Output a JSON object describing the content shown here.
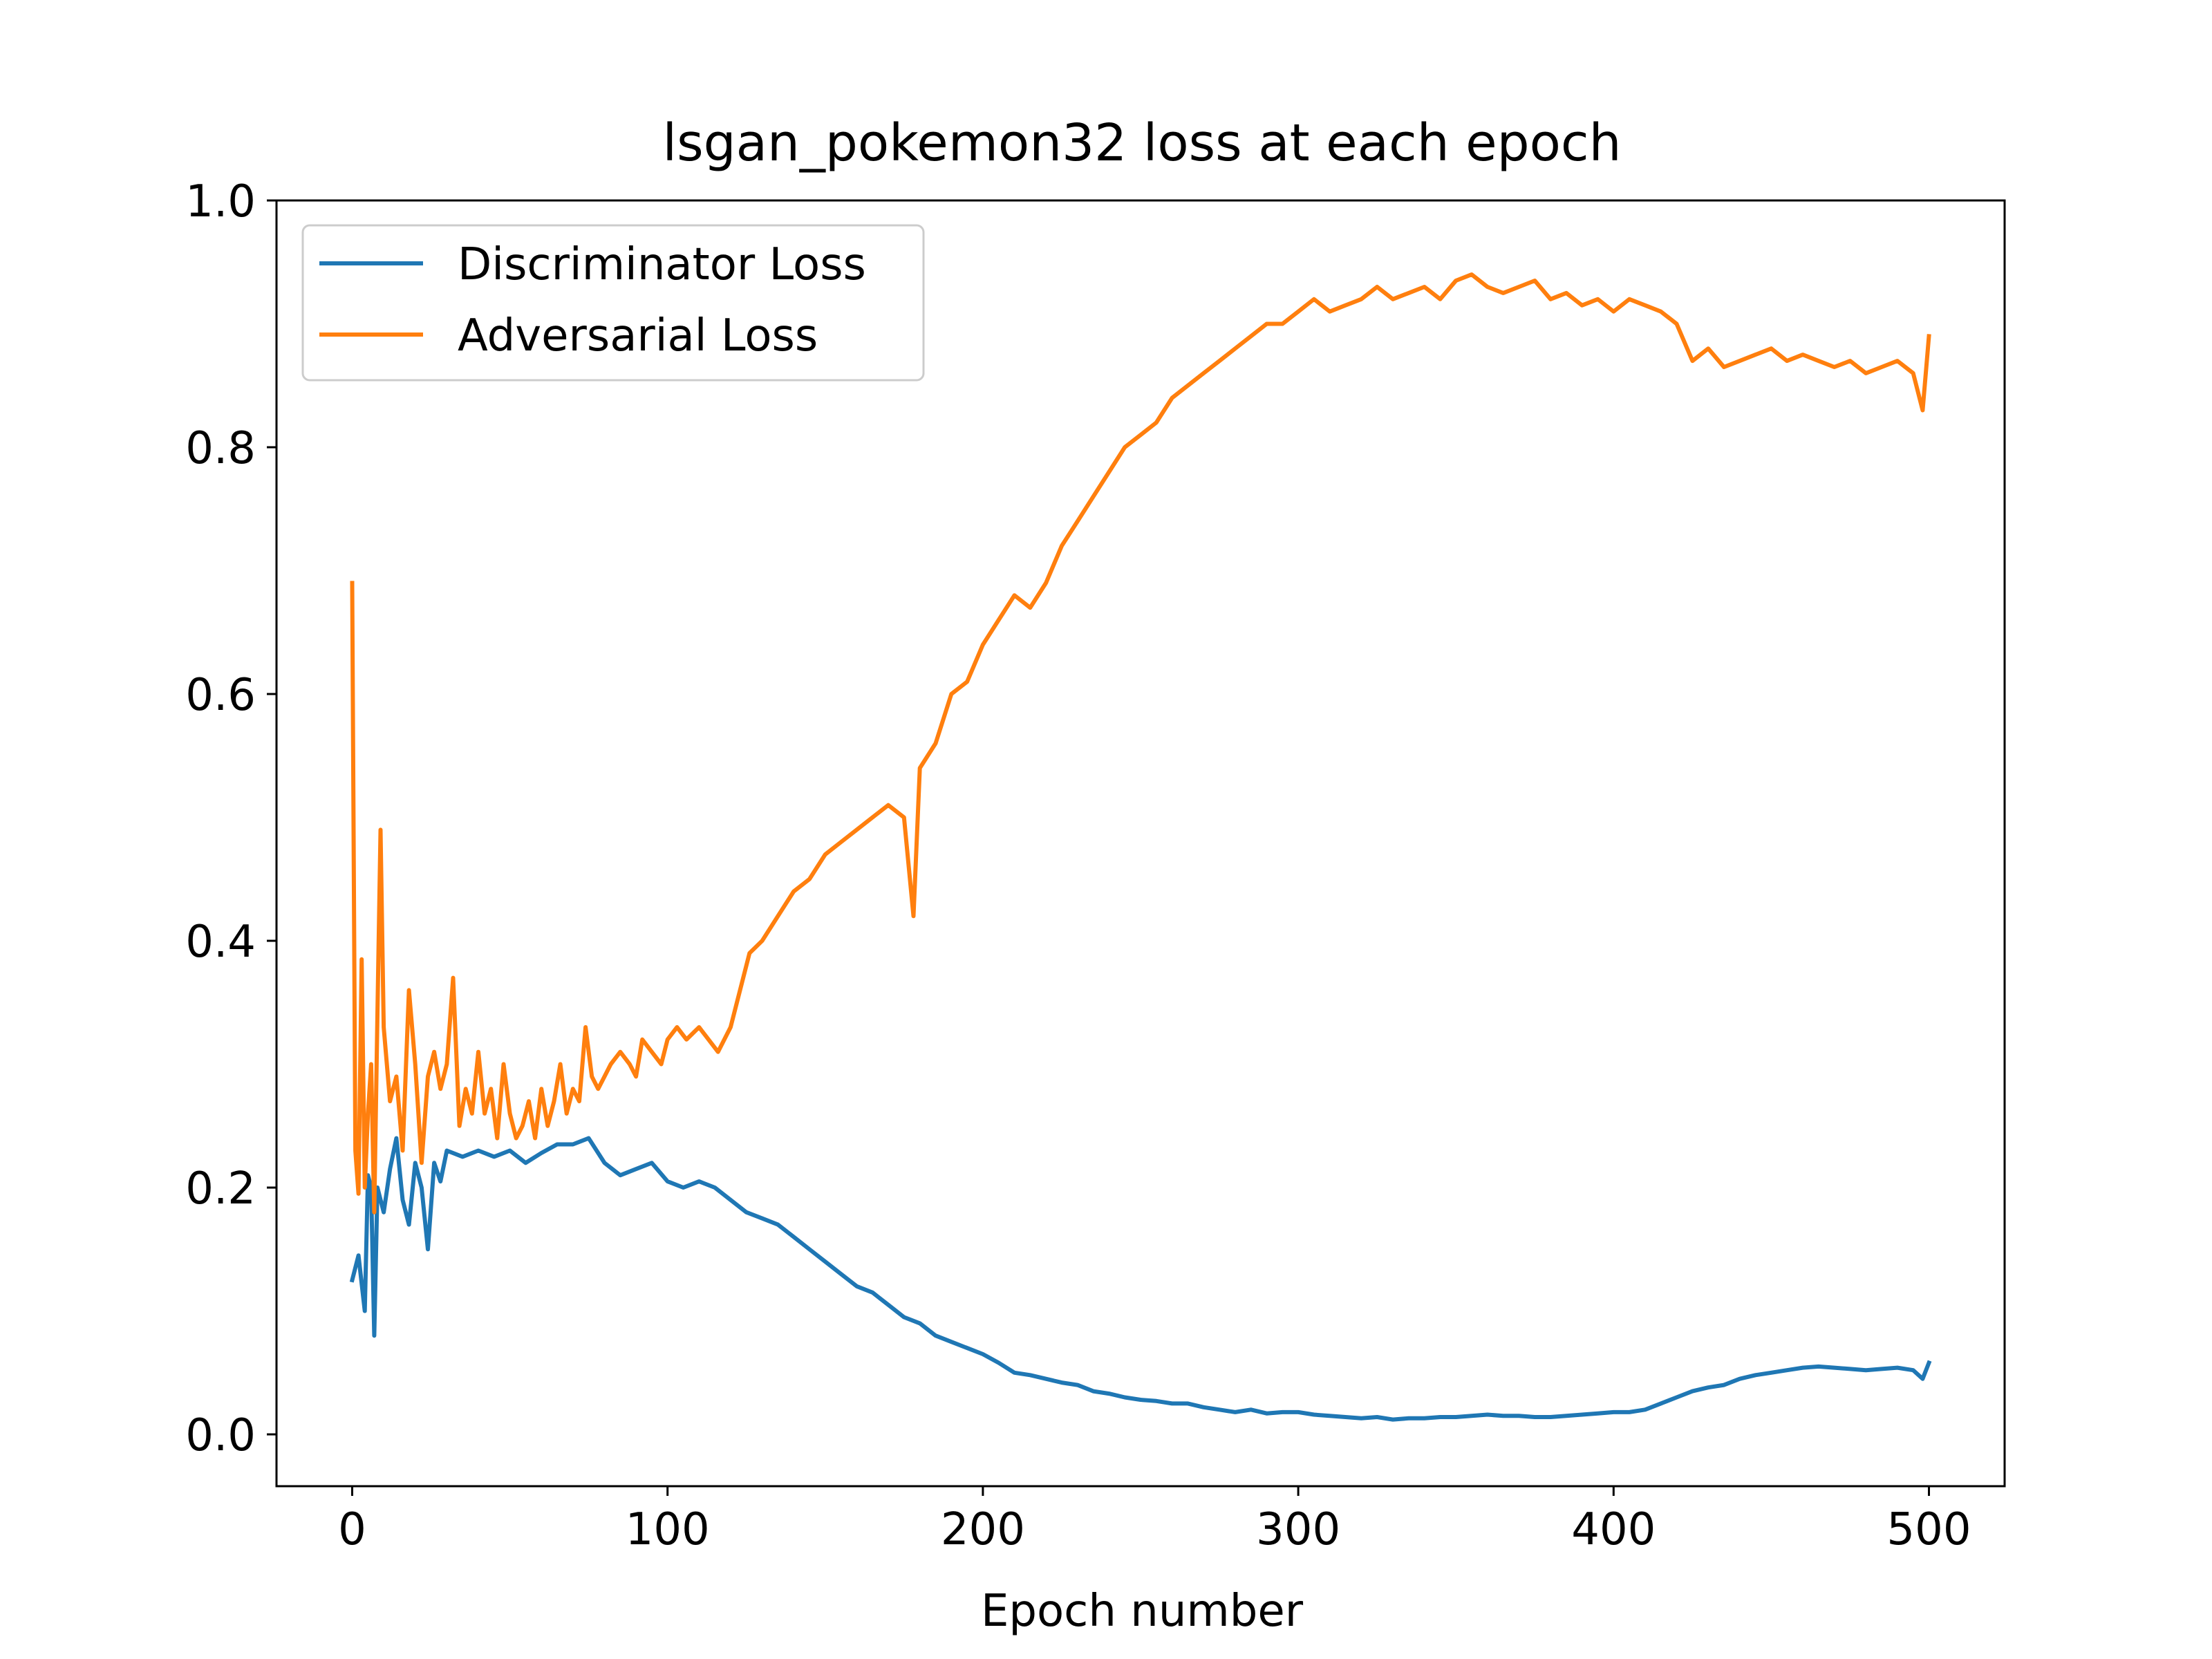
{
  "chart_data": {
    "type": "line",
    "title": "lsgan_pokemon32 loss at each epoch",
    "xlabel": "Epoch number",
    "ylabel": "",
    "xlim": [
      -24,
      524
    ],
    "ylim": [
      -0.042,
      1.0
    ],
    "xticks": [
      0,
      100,
      200,
      300,
      400,
      500
    ],
    "xtick_labels": [
      "0",
      "100",
      "200",
      "300",
      "400",
      "500"
    ],
    "yticks": [
      0.0,
      0.2,
      0.4,
      0.6,
      0.8,
      1.0
    ],
    "ytick_labels": [
      "0.0",
      "0.2",
      "0.4",
      "0.6",
      "0.8",
      "1.0"
    ],
    "grid": false,
    "legend_position": "top-left",
    "series": [
      {
        "name": "Discriminator Loss",
        "color": "#1f77b4",
        "x": [
          0,
          2,
          4,
          5,
          6,
          7,
          8,
          10,
          12,
          14,
          16,
          18,
          20,
          22,
          24,
          26,
          28,
          30,
          35,
          40,
          45,
          50,
          55,
          60,
          65,
          70,
          75,
          80,
          85,
          90,
          95,
          100,
          105,
          110,
          115,
          120,
          125,
          130,
          135,
          140,
          145,
          150,
          155,
          160,
          165,
          170,
          175,
          180,
          185,
          190,
          195,
          200,
          205,
          210,
          215,
          220,
          225,
          230,
          235,
          240,
          245,
          250,
          255,
          260,
          265,
          270,
          275,
          280,
          285,
          290,
          295,
          300,
          305,
          310,
          315,
          320,
          325,
          330,
          335,
          340,
          345,
          350,
          355,
          360,
          365,
          370,
          375,
          380,
          385,
          390,
          395,
          400,
          405,
          410,
          415,
          420,
          425,
          430,
          435,
          440,
          445,
          450,
          455,
          460,
          465,
          470,
          475,
          480,
          485,
          490,
          495,
          498,
          500
        ],
        "values": [
          0.125,
          0.145,
          0.1,
          0.21,
          0.2,
          0.08,
          0.2,
          0.18,
          0.215,
          0.24,
          0.19,
          0.17,
          0.22,
          0.2,
          0.15,
          0.22,
          0.205,
          0.23,
          0.225,
          0.23,
          0.225,
          0.23,
          0.22,
          0.228,
          0.235,
          0.235,
          0.24,
          0.22,
          0.21,
          0.215,
          0.22,
          0.205,
          0.2,
          0.205,
          0.2,
          0.19,
          0.18,
          0.175,
          0.17,
          0.16,
          0.15,
          0.14,
          0.13,
          0.12,
          0.115,
          0.105,
          0.095,
          0.09,
          0.08,
          0.075,
          0.07,
          0.065,
          0.058,
          0.05,
          0.048,
          0.045,
          0.042,
          0.04,
          0.035,
          0.033,
          0.03,
          0.028,
          0.027,
          0.025,
          0.025,
          0.022,
          0.02,
          0.018,
          0.02,
          0.017,
          0.018,
          0.018,
          0.016,
          0.015,
          0.014,
          0.013,
          0.014,
          0.012,
          0.013,
          0.013,
          0.014,
          0.014,
          0.015,
          0.016,
          0.015,
          0.015,
          0.014,
          0.014,
          0.015,
          0.016,
          0.017,
          0.018,
          0.018,
          0.02,
          0.025,
          0.03,
          0.035,
          0.038,
          0.04,
          0.045,
          0.048,
          0.05,
          0.052,
          0.054,
          0.055,
          0.054,
          0.053,
          0.052,
          0.053,
          0.054,
          0.052,
          0.045,
          0.058
        ]
      },
      {
        "name": "Adversarial Loss",
        "color": "#ff7f0e",
        "x": [
          0,
          1,
          2,
          3,
          4,
          5,
          6,
          7,
          8,
          9,
          10,
          12,
          14,
          16,
          18,
          20,
          22,
          24,
          26,
          28,
          30,
          32,
          34,
          36,
          38,
          40,
          42,
          44,
          46,
          48,
          50,
          52,
          54,
          56,
          58,
          60,
          62,
          64,
          66,
          68,
          70,
          72,
          74,
          76,
          78,
          80,
          82,
          85,
          88,
          90,
          92,
          95,
          98,
          100,
          103,
          106,
          110,
          113,
          116,
          120,
          123,
          126,
          130,
          135,
          140,
          145,
          150,
          155,
          160,
          165,
          170,
          175,
          178,
          180,
          185,
          190,
          195,
          200,
          205,
          210,
          215,
          220,
          225,
          230,
          235,
          240,
          245,
          250,
          255,
          260,
          265,
          270,
          275,
          280,
          285,
          290,
          295,
          300,
          305,
          310,
          315,
          320,
          325,
          330,
          335,
          340,
          345,
          350,
          355,
          360,
          365,
          370,
          375,
          380,
          385,
          390,
          395,
          400,
          405,
          410,
          415,
          420,
          425,
          430,
          435,
          440,
          445,
          450,
          455,
          460,
          465,
          470,
          475,
          480,
          485,
          490,
          495,
          498,
          500
        ],
        "values": [
          0.69,
          0.23,
          0.195,
          0.385,
          0.2,
          0.26,
          0.3,
          0.18,
          0.34,
          0.49,
          0.33,
          0.27,
          0.29,
          0.23,
          0.36,
          0.3,
          0.22,
          0.29,
          0.31,
          0.28,
          0.3,
          0.37,
          0.25,
          0.28,
          0.26,
          0.31,
          0.26,
          0.28,
          0.24,
          0.3,
          0.26,
          0.24,
          0.25,
          0.27,
          0.24,
          0.28,
          0.25,
          0.27,
          0.3,
          0.26,
          0.28,
          0.27,
          0.33,
          0.29,
          0.28,
          0.29,
          0.3,
          0.31,
          0.3,
          0.29,
          0.32,
          0.31,
          0.3,
          0.32,
          0.33,
          0.32,
          0.33,
          0.32,
          0.31,
          0.33,
          0.36,
          0.39,
          0.4,
          0.42,
          0.44,
          0.45,
          0.47,
          0.48,
          0.49,
          0.5,
          0.51,
          0.5,
          0.42,
          0.54,
          0.56,
          0.6,
          0.61,
          0.64,
          0.66,
          0.68,
          0.67,
          0.69,
          0.72,
          0.74,
          0.76,
          0.78,
          0.8,
          0.81,
          0.82,
          0.84,
          0.85,
          0.86,
          0.87,
          0.88,
          0.89,
          0.9,
          0.9,
          0.91,
          0.92,
          0.91,
          0.915,
          0.92,
          0.93,
          0.92,
          0.925,
          0.93,
          0.92,
          0.935,
          0.94,
          0.93,
          0.925,
          0.93,
          0.935,
          0.92,
          0.925,
          0.915,
          0.92,
          0.91,
          0.92,
          0.915,
          0.91,
          0.9,
          0.87,
          0.88,
          0.865,
          0.87,
          0.875,
          0.88,
          0.87,
          0.875,
          0.87,
          0.865,
          0.87,
          0.86,
          0.865,
          0.87,
          0.86,
          0.83,
          0.89
        ]
      }
    ]
  }
}
